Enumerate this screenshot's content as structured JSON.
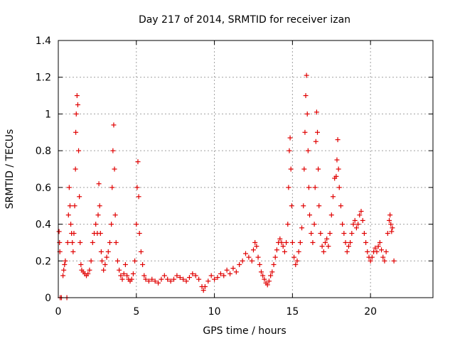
{
  "chart_data": {
    "type": "scatter",
    "title": "Day 217 of 2014, SRMTID for receiver izan",
    "xlabel": "GPS time / hours",
    "ylabel": "SRMTID / TECUs",
    "xlim": [
      0,
      24
    ],
    "ylim": [
      0,
      1.4
    ],
    "x_ticks": [
      "0",
      "5",
      "10",
      "15",
      "20"
    ],
    "x_tick_values": [
      0,
      5,
      10,
      15,
      20
    ],
    "y_ticks": [
      "0",
      "0.2",
      "0.4",
      "0.6",
      "0.8",
      "1",
      "1.2",
      "1.4"
    ],
    "y_tick_values": [
      0,
      0.2,
      0.4,
      0.6,
      0.8,
      1.0,
      1.2,
      1.4
    ],
    "grid": true,
    "marker": "+",
    "series": [
      {
        "name": "SRMTID",
        "color": "#e00000",
        "points": [
          [
            0.05,
            0.36
          ],
          [
            0.08,
            0.3
          ],
          [
            0.1,
            0.25
          ],
          [
            0.12,
            0.0
          ],
          [
            0.2,
            0.0
          ],
          [
            0.3,
            0.12
          ],
          [
            0.35,
            0.15
          ],
          [
            0.4,
            0.18
          ],
          [
            0.45,
            0.2
          ],
          [
            0.55,
            0.0
          ],
          [
            0.6,
            0.3
          ],
          [
            0.65,
            0.45
          ],
          [
            0.7,
            0.6
          ],
          [
            0.75,
            0.5
          ],
          [
            0.8,
            0.4
          ],
          [
            0.85,
            0.35
          ],
          [
            0.9,
            0.3
          ],
          [
            0.95,
            0.25
          ],
          [
            1.0,
            0.35
          ],
          [
            1.05,
            0.5
          ],
          [
            1.1,
            0.7
          ],
          [
            1.12,
            0.9
          ],
          [
            1.15,
            1.0
          ],
          [
            1.2,
            1.1
          ],
          [
            1.25,
            1.05
          ],
          [
            1.3,
            0.8
          ],
          [
            1.35,
            0.55
          ],
          [
            1.4,
            0.3
          ],
          [
            1.45,
            0.18
          ],
          [
            1.5,
            0.15
          ],
          [
            1.6,
            0.14
          ],
          [
            1.7,
            0.13
          ],
          [
            1.8,
            0.12
          ],
          [
            1.9,
            0.13
          ],
          [
            2.0,
            0.15
          ],
          [
            2.1,
            0.2
          ],
          [
            2.2,
            0.3
          ],
          [
            2.3,
            0.35
          ],
          [
            2.4,
            0.4
          ],
          [
            2.5,
            0.35
          ],
          [
            2.55,
            0.45
          ],
          [
            2.6,
            0.62
          ],
          [
            2.65,
            0.5
          ],
          [
            2.7,
            0.35
          ],
          [
            2.75,
            0.25
          ],
          [
            2.8,
            0.2
          ],
          [
            2.9,
            0.15
          ],
          [
            3.0,
            0.18
          ],
          [
            3.1,
            0.22
          ],
          [
            3.2,
            0.25
          ],
          [
            3.3,
            0.3
          ],
          [
            3.4,
            0.4
          ],
          [
            3.45,
            0.6
          ],
          [
            3.5,
            0.8
          ],
          [
            3.55,
            0.94
          ],
          [
            3.6,
            0.7
          ],
          [
            3.65,
            0.45
          ],
          [
            3.7,
            0.3
          ],
          [
            3.8,
            0.2
          ],
          [
            3.9,
            0.15
          ],
          [
            4.0,
            0.12
          ],
          [
            4.1,
            0.1
          ],
          [
            4.2,
            0.13
          ],
          [
            4.3,
            0.18
          ],
          [
            4.4,
            0.12
          ],
          [
            4.5,
            0.1
          ],
          [
            4.6,
            0.09
          ],
          [
            4.7,
            0.1
          ],
          [
            4.8,
            0.13
          ],
          [
            4.9,
            0.2
          ],
          [
            5.0,
            0.4
          ],
          [
            5.05,
            0.6
          ],
          [
            5.1,
            0.74
          ],
          [
            5.15,
            0.55
          ],
          [
            5.2,
            0.35
          ],
          [
            5.3,
            0.25
          ],
          [
            5.4,
            0.18
          ],
          [
            5.5,
            0.12
          ],
          [
            5.6,
            0.1
          ],
          [
            5.8,
            0.09
          ],
          [
            6.0,
            0.1
          ],
          [
            6.2,
            0.09
          ],
          [
            6.4,
            0.08
          ],
          [
            6.6,
            0.1
          ],
          [
            6.8,
            0.12
          ],
          [
            7.0,
            0.1
          ],
          [
            7.2,
            0.09
          ],
          [
            7.4,
            0.1
          ],
          [
            7.6,
            0.12
          ],
          [
            7.8,
            0.11
          ],
          [
            8.0,
            0.1
          ],
          [
            8.2,
            0.09
          ],
          [
            8.4,
            0.11
          ],
          [
            8.6,
            0.13
          ],
          [
            8.8,
            0.12
          ],
          [
            9.0,
            0.1
          ],
          [
            9.2,
            0.06
          ],
          [
            9.3,
            0.04
          ],
          [
            9.4,
            0.06
          ],
          [
            9.6,
            0.09
          ],
          [
            9.8,
            0.12
          ],
          [
            10.0,
            0.1
          ],
          [
            10.2,
            0.11
          ],
          [
            10.4,
            0.13
          ],
          [
            10.6,
            0.12
          ],
          [
            10.8,
            0.15
          ],
          [
            11.0,
            0.13
          ],
          [
            11.2,
            0.16
          ],
          [
            11.4,
            0.14
          ],
          [
            11.6,
            0.18
          ],
          [
            11.8,
            0.2
          ],
          [
            12.0,
            0.24
          ],
          [
            12.2,
            0.22
          ],
          [
            12.4,
            0.2
          ],
          [
            12.5,
            0.26
          ],
          [
            12.6,
            0.3
          ],
          [
            12.7,
            0.28
          ],
          [
            12.8,
            0.22
          ],
          [
            12.9,
            0.18
          ],
          [
            13.0,
            0.14
          ],
          [
            13.1,
            0.12
          ],
          [
            13.2,
            0.1
          ],
          [
            13.3,
            0.08
          ],
          [
            13.4,
            0.07
          ],
          [
            13.5,
            0.09
          ],
          [
            13.6,
            0.12
          ],
          [
            13.7,
            0.14
          ],
          [
            13.8,
            0.18
          ],
          [
            13.9,
            0.22
          ],
          [
            14.0,
            0.26
          ],
          [
            14.1,
            0.3
          ],
          [
            14.2,
            0.32
          ],
          [
            14.3,
            0.3
          ],
          [
            14.4,
            0.28
          ],
          [
            14.5,
            0.25
          ],
          [
            14.6,
            0.3
          ],
          [
            14.7,
            0.4
          ],
          [
            14.75,
            0.6
          ],
          [
            14.8,
            0.8
          ],
          [
            14.85,
            0.87
          ],
          [
            14.9,
            0.7
          ],
          [
            14.95,
            0.5
          ],
          [
            15.0,
            0.3
          ],
          [
            15.1,
            0.22
          ],
          [
            15.2,
            0.18
          ],
          [
            15.3,
            0.2
          ],
          [
            15.4,
            0.25
          ],
          [
            15.5,
            0.3
          ],
          [
            15.6,
            0.38
          ],
          [
            15.7,
            0.5
          ],
          [
            15.75,
            0.7
          ],
          [
            15.8,
            0.9
          ],
          [
            15.85,
            1.1
          ],
          [
            15.9,
            1.21
          ],
          [
            15.95,
            1.0
          ],
          [
            16.0,
            0.8
          ],
          [
            16.05,
            0.6
          ],
          [
            16.1,
            0.45
          ],
          [
            16.2,
            0.35
          ],
          [
            16.3,
            0.3
          ],
          [
            16.4,
            0.4
          ],
          [
            16.45,
            0.6
          ],
          [
            16.5,
            0.85
          ],
          [
            16.55,
            1.01
          ],
          [
            16.6,
            0.9
          ],
          [
            16.65,
            0.7
          ],
          [
            16.7,
            0.5
          ],
          [
            16.8,
            0.35
          ],
          [
            16.9,
            0.28
          ],
          [
            17.0,
            0.25
          ],
          [
            17.1,
            0.3
          ],
          [
            17.2,
            0.32
          ],
          [
            17.3,
            0.28
          ],
          [
            17.4,
            0.35
          ],
          [
            17.5,
            0.45
          ],
          [
            17.6,
            0.55
          ],
          [
            17.7,
            0.65
          ],
          [
            17.8,
            0.66
          ],
          [
            17.85,
            0.75
          ],
          [
            17.9,
            0.86
          ],
          [
            17.95,
            0.7
          ],
          [
            18.0,
            0.6
          ],
          [
            18.1,
            0.5
          ],
          [
            18.2,
            0.4
          ],
          [
            18.3,
            0.35
          ],
          [
            18.4,
            0.3
          ],
          [
            18.5,
            0.25
          ],
          [
            18.6,
            0.28
          ],
          [
            18.7,
            0.3
          ],
          [
            18.8,
            0.35
          ],
          [
            18.9,
            0.4
          ],
          [
            19.0,
            0.42
          ],
          [
            19.1,
            0.38
          ],
          [
            19.2,
            0.4
          ],
          [
            19.3,
            0.45
          ],
          [
            19.4,
            0.47
          ],
          [
            19.5,
            0.42
          ],
          [
            19.6,
            0.35
          ],
          [
            19.7,
            0.3
          ],
          [
            19.8,
            0.25
          ],
          [
            19.9,
            0.22
          ],
          [
            20.0,
            0.2
          ],
          [
            20.1,
            0.22
          ],
          [
            20.2,
            0.25
          ],
          [
            20.3,
            0.27
          ],
          [
            20.4,
            0.25
          ],
          [
            20.5,
            0.28
          ],
          [
            20.6,
            0.3
          ],
          [
            20.7,
            0.26
          ],
          [
            20.8,
            0.22
          ],
          [
            20.9,
            0.2
          ],
          [
            21.0,
            0.25
          ],
          [
            21.1,
            0.35
          ],
          [
            21.2,
            0.42
          ],
          [
            21.25,
            0.45
          ],
          [
            21.3,
            0.4
          ],
          [
            21.35,
            0.36
          ],
          [
            21.4,
            0.38
          ],
          [
            21.5,
            0.2
          ]
        ]
      }
    ]
  }
}
